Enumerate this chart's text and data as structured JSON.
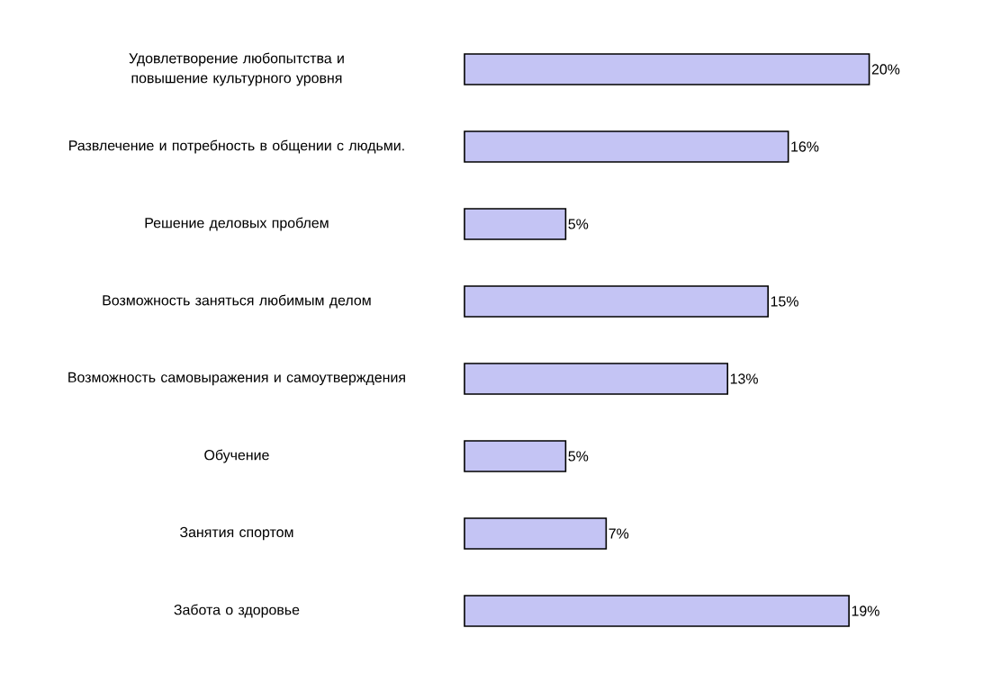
{
  "chart_data": {
    "type": "bar",
    "orientation": "horizontal",
    "categories": [
      "Удовлетворение любопытства и повышение культурного уровня",
      "Развлечение и потребность в общении с людьми.",
      "Решение деловых проблем",
      "Возможность заняться любимым делом",
      "Возможность самовыражения и самоутверждения",
      "Обучение",
      "Занятия спортом",
      "Забота о здоровье"
    ],
    "values": [
      20,
      16,
      5,
      15,
      13,
      5,
      7,
      19
    ],
    "value_labels": [
      "20%",
      "16%",
      "5%",
      "15%",
      "13%",
      "5%",
      "7%",
      "19%"
    ],
    "color": "#c4c4f4"
  }
}
